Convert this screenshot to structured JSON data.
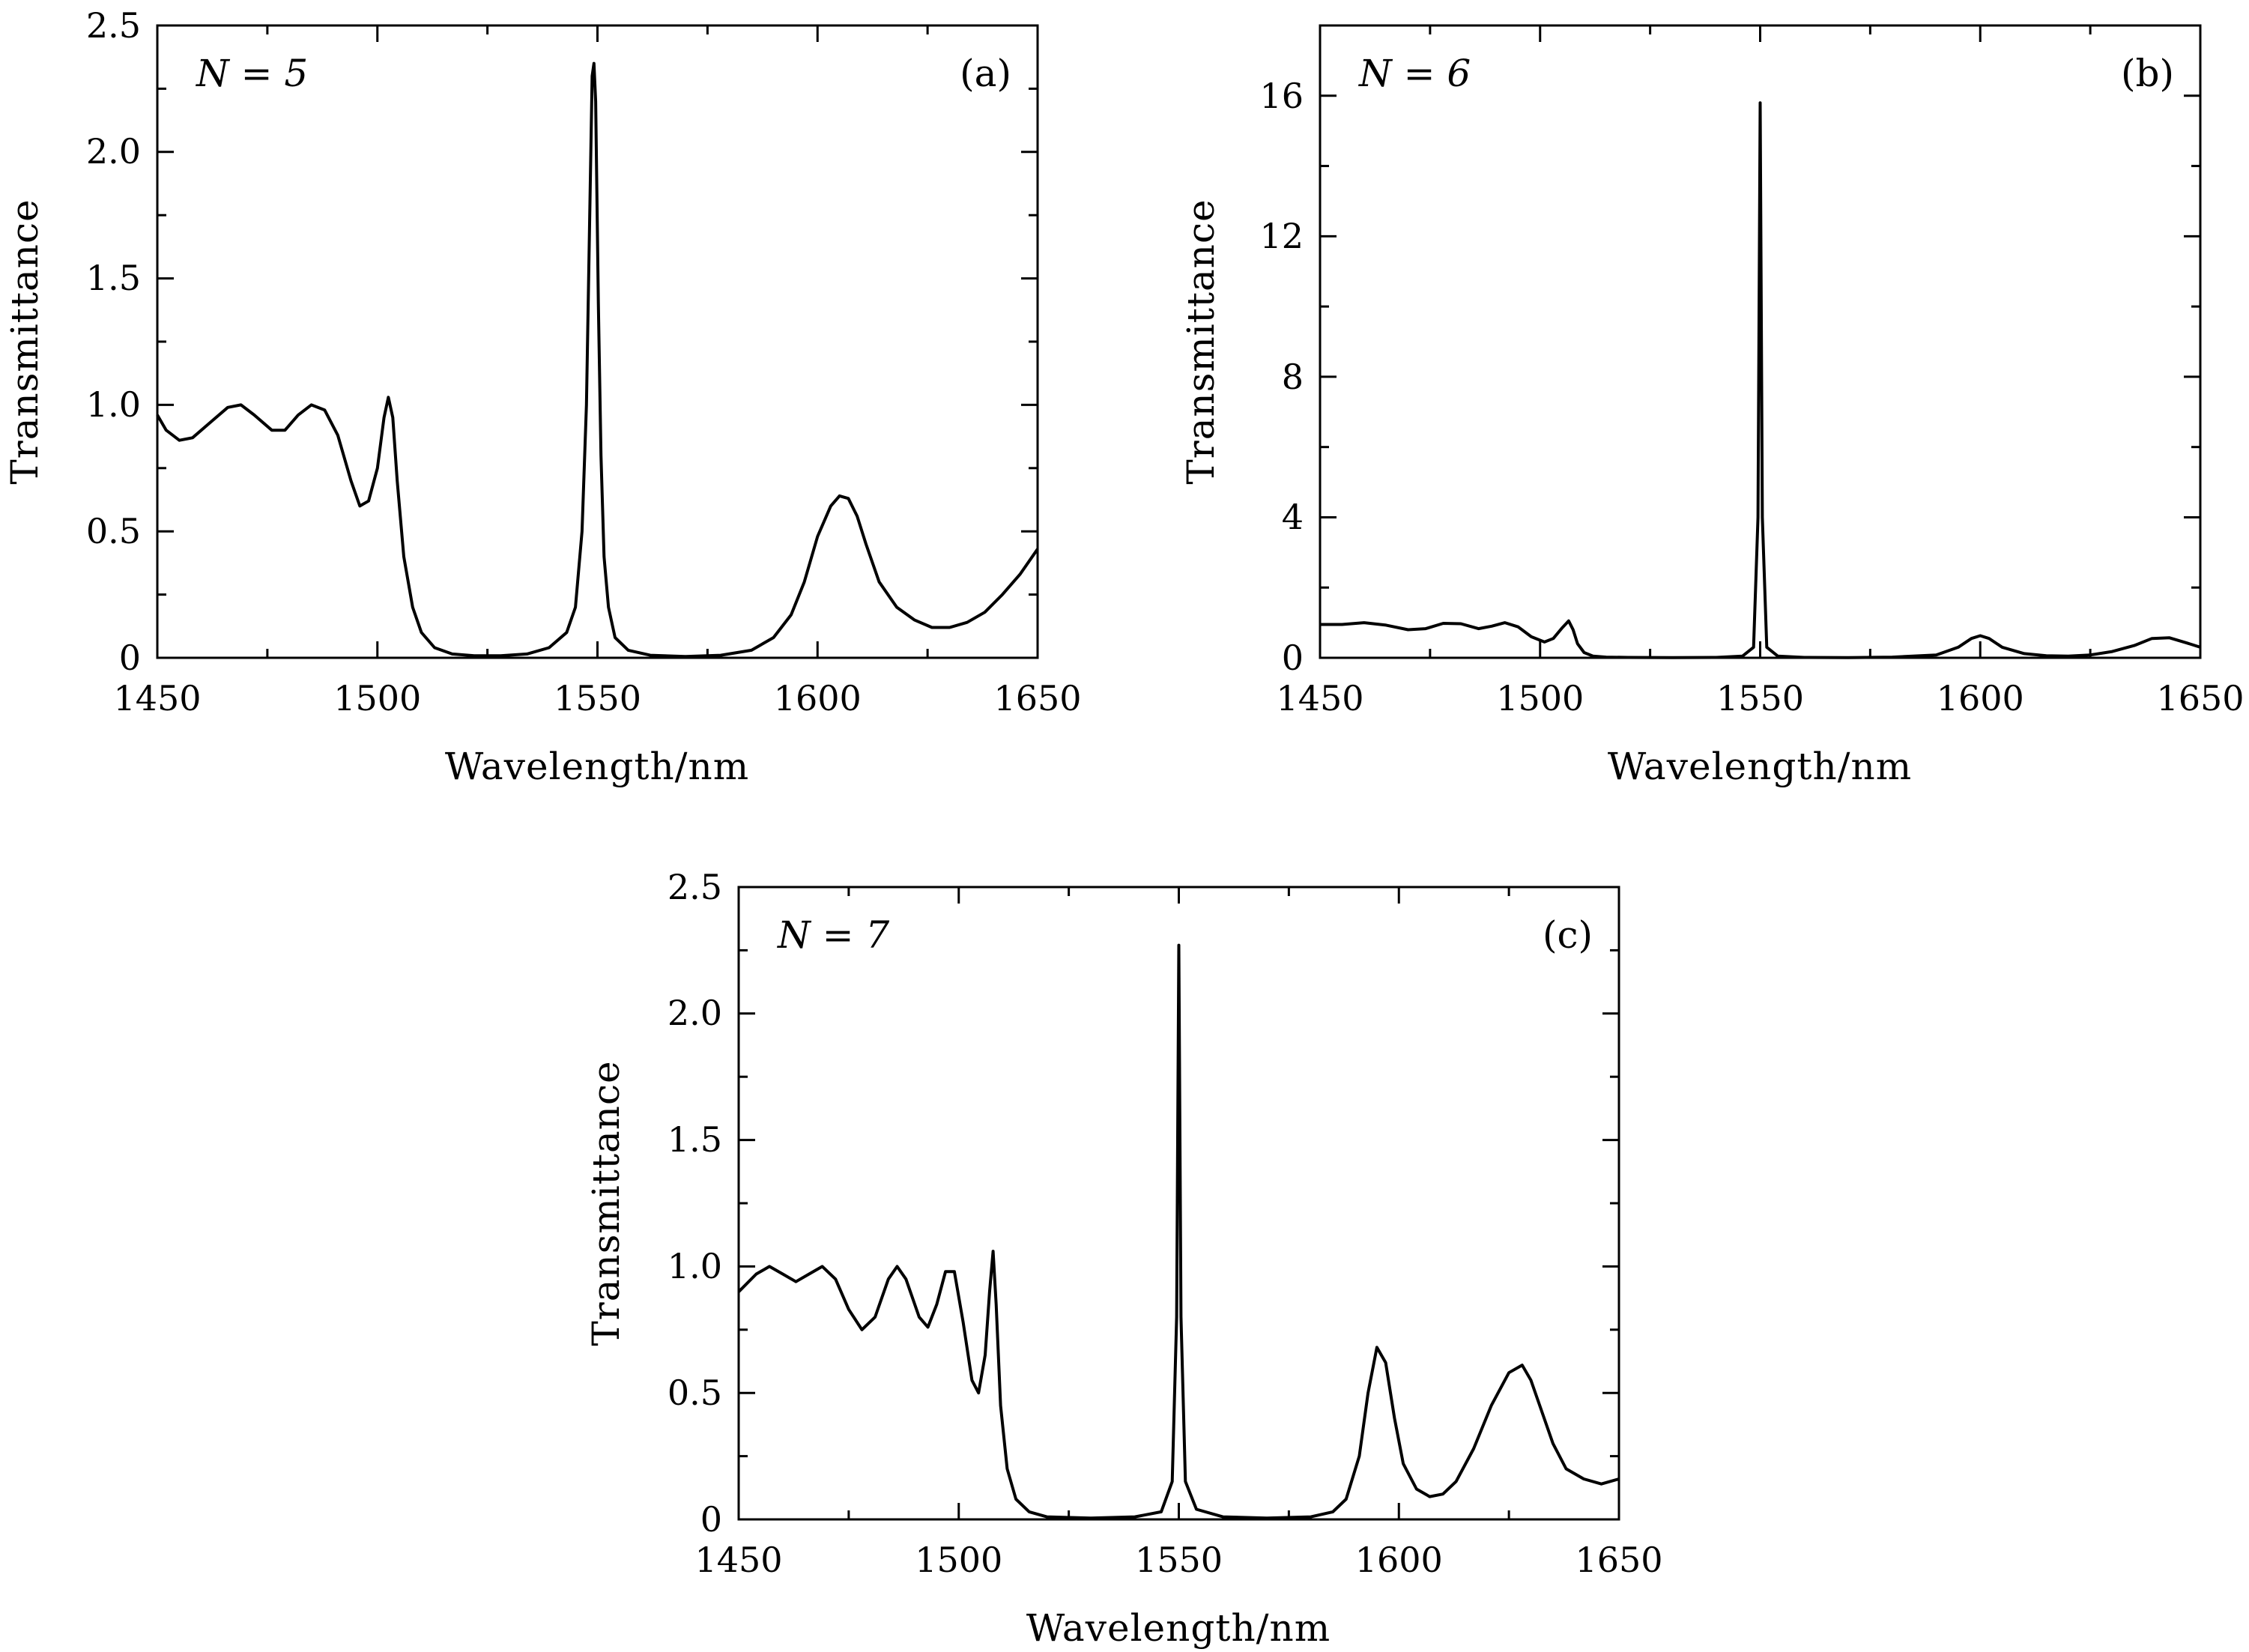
{
  "chart_data": [
    {
      "type": "line",
      "panel_label": "(a)",
      "annotation": "N = 5",
      "xlabel": "Wavelength/nm",
      "ylabel": "Transmittance",
      "xlim": [
        1450,
        1650
      ],
      "ylim": [
        0,
        2.5
      ],
      "x_ticks": [
        1450,
        1500,
        1550,
        1600,
        1650
      ],
      "x_tick_labels": [
        "1450",
        "1500",
        "1550",
        "1600",
        "1650"
      ],
      "y_ticks": [
        0,
        0.5,
        1.0,
        1.5,
        2.0,
        2.5
      ],
      "y_tick_labels": [
        "0",
        "0.5",
        "1.0",
        "1.5",
        "2.0",
        "2.5"
      ],
      "grid": false,
      "series": [
        {
          "color": "#000000",
          "x": [
            1450,
            1452,
            1455,
            1458,
            1462,
            1466,
            1469,
            1472,
            1476,
            1479,
            1482,
            1485,
            1488,
            1491,
            1494,
            1496,
            1498,
            1500,
            1501.5,
            1502.5,
            1503.5,
            1504.5,
            1506,
            1508,
            1510,
            1513,
            1517,
            1522,
            1528,
            1534,
            1539,
            1543,
            1545,
            1546.5,
            1547.5,
            1548.2,
            1548.8,
            1549.2,
            1549.6,
            1550.2,
            1550.8,
            1551.5,
            1552.5,
            1554,
            1557,
            1562,
            1570,
            1578,
            1585,
            1590,
            1594,
            1597,
            1600,
            1603,
            1605,
            1607,
            1609,
            1611,
            1614,
            1618,
            1622,
            1626,
            1630,
            1634,
            1638,
            1642,
            1646,
            1650
          ],
          "y": [
            0.96,
            0.9,
            0.86,
            0.87,
            0.93,
            0.99,
            1.0,
            0.96,
            0.9,
            0.9,
            0.96,
            1.0,
            0.98,
            0.88,
            0.7,
            0.6,
            0.62,
            0.75,
            0.95,
            1.03,
            0.95,
            0.7,
            0.4,
            0.2,
            0.1,
            0.04,
            0.015,
            0.008,
            0.008,
            0.015,
            0.04,
            0.1,
            0.2,
            0.5,
            1.0,
            1.7,
            2.3,
            2.35,
            2.2,
            1.4,
            0.8,
            0.4,
            0.2,
            0.08,
            0.03,
            0.01,
            0.005,
            0.01,
            0.03,
            0.08,
            0.17,
            0.3,
            0.48,
            0.6,
            0.64,
            0.63,
            0.56,
            0.45,
            0.3,
            0.2,
            0.15,
            0.12,
            0.12,
            0.14,
            0.18,
            0.25,
            0.33,
            0.43
          ]
        }
      ]
    },
    {
      "type": "line",
      "panel_label": "(b)",
      "annotation": "N = 6",
      "xlabel": "Wavelength/nm",
      "ylabel": "Transmittance",
      "xlim": [
        1450,
        1650
      ],
      "ylim": [
        0,
        18
      ],
      "x_ticks": [
        1450,
        1500,
        1550,
        1600,
        1650
      ],
      "x_tick_labels": [
        "1450",
        "1500",
        "1550",
        "1600",
        "1650"
      ],
      "y_ticks": [
        0,
        4,
        8,
        12,
        16
      ],
      "y_tick_labels": [
        "0",
        "4",
        "8",
        "12",
        "16"
      ],
      "grid": false,
      "series": [
        {
          "color": "#000000",
          "x": [
            1450,
            1455,
            1460,
            1465,
            1470,
            1474,
            1478,
            1482,
            1486,
            1489,
            1492,
            1495,
            1498,
            1501,
            1503,
            1505,
            1506.5,
            1507.5,
            1508.5,
            1510,
            1512,
            1515,
            1520,
            1530,
            1540,
            1546,
            1548.5,
            1549.5,
            1550,
            1550.5,
            1551.5,
            1554,
            1560,
            1570,
            1580,
            1590,
            1595,
            1598,
            1600,
            1602,
            1605,
            1610,
            1615,
            1620,
            1625,
            1630,
            1635,
            1639,
            1643,
            1647,
            1650
          ],
          "y": [
            0.95,
            0.95,
            1.0,
            0.93,
            0.8,
            0.83,
            0.98,
            0.97,
            0.83,
            0.9,
            1.0,
            0.88,
            0.6,
            0.45,
            0.55,
            0.85,
            1.05,
            0.8,
            0.4,
            0.15,
            0.05,
            0.02,
            0.01,
            0.005,
            0.01,
            0.05,
            0.3,
            4.0,
            15.8,
            4.0,
            0.3,
            0.05,
            0.01,
            0.005,
            0.02,
            0.08,
            0.3,
            0.55,
            0.63,
            0.55,
            0.3,
            0.12,
            0.06,
            0.05,
            0.08,
            0.18,
            0.35,
            0.55,
            0.57,
            0.42,
            0.3
          ]
        }
      ]
    },
    {
      "type": "line",
      "panel_label": "(c)",
      "annotation": "N = 7",
      "xlabel": "Wavelength/nm",
      "ylabel": "Transmittance",
      "xlim": [
        1450,
        1650
      ],
      "ylim": [
        0,
        2.5
      ],
      "x_ticks": [
        1450,
        1500,
        1550,
        1600,
        1650
      ],
      "x_tick_labels": [
        "1450",
        "1500",
        "1550",
        "1600",
        "1650"
      ],
      "y_ticks": [
        0,
        0.5,
        1.0,
        1.5,
        2.0,
        2.5
      ],
      "y_tick_labels": [
        "0",
        "0.5",
        "1.0",
        "1.5",
        "2.0",
        "2.5"
      ],
      "grid": false,
      "series": [
        {
          "color": "#000000",
          "x": [
            1450,
            1454,
            1457,
            1460,
            1463,
            1466,
            1469,
            1472,
            1475,
            1478,
            1481,
            1484,
            1486,
            1488,
            1491,
            1493,
            1495,
            1497,
            1499,
            1501,
            1503,
            1504.5,
            1506,
            1507,
            1507.8,
            1508.5,
            1509.5,
            1511,
            1513,
            1516,
            1520,
            1530,
            1540,
            1546,
            1548.5,
            1549.5,
            1550,
            1550.5,
            1551.5,
            1554,
            1560,
            1570,
            1580,
            1585,
            1588,
            1591,
            1593,
            1595,
            1597,
            1599,
            1601,
            1604,
            1607,
            1610,
            1613,
            1617,
            1621,
            1625,
            1628,
            1630,
            1632,
            1635,
            1638,
            1642,
            1646,
            1650
          ],
          "y": [
            0.9,
            0.97,
            1.0,
            0.97,
            0.94,
            0.97,
            1.0,
            0.95,
            0.83,
            0.75,
            0.8,
            0.95,
            1.0,
            0.95,
            0.8,
            0.76,
            0.85,
            0.98,
            0.98,
            0.78,
            0.55,
            0.5,
            0.65,
            0.9,
            1.06,
            0.85,
            0.45,
            0.2,
            0.08,
            0.03,
            0.01,
            0.005,
            0.01,
            0.03,
            0.15,
            0.8,
            2.27,
            0.8,
            0.15,
            0.04,
            0.01,
            0.005,
            0.01,
            0.03,
            0.08,
            0.25,
            0.5,
            0.68,
            0.62,
            0.4,
            0.22,
            0.12,
            0.09,
            0.1,
            0.15,
            0.28,
            0.45,
            0.58,
            0.61,
            0.55,
            0.45,
            0.3,
            0.2,
            0.16,
            0.14,
            0.16
          ]
        }
      ]
    }
  ]
}
